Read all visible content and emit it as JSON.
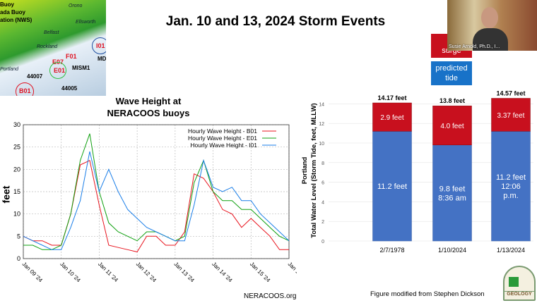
{
  "slide_title": "Jan. 10 and 13, 2024 Storm Events",
  "map": {
    "legend_fragments": [
      "Buoy",
      "ada Buoy",
      "ation (NWS)"
    ],
    "places": [
      "Orono",
      "Ellsworth",
      "Belfast",
      "Rockland",
      "Portland"
    ],
    "buoys": [
      "F01",
      "E07",
      "E01",
      "I01",
      "B01",
      "MISM1",
      "44007",
      "44005",
      "MD"
    ]
  },
  "wave_chart_title": [
    "Wave Height at",
    "NERACOOS buoys"
  ],
  "wave_source": "NERACOOS.org",
  "video": {
    "participant_name": "Susie Arnold, Ph.D., I..."
  },
  "bar_legend": {
    "surge": [
      "st",
      "surge"
    ],
    "tide": [
      "predicted",
      "tide"
    ]
  },
  "figure_credit": "Figure modified from Stephen Dickson",
  "logo_text": "GEOLOGY",
  "colors": {
    "surge": "#c8101e",
    "tide": "#4472c4",
    "legend_tide": "#1872c8",
    "b01": "#e8141e",
    "e01": "#10a010",
    "i01": "#1a7ee8"
  },
  "chart_data": [
    {
      "type": "line",
      "ylabel": "feet",
      "ylim": [
        0,
        30
      ],
      "yticks": [
        0,
        5,
        10,
        15,
        20,
        25,
        30
      ],
      "xticks": [
        "Jan 09 '24",
        "Jan 10 '24",
        "Jan 11 '24",
        "Jan 12 '24",
        "Jan 13 '24",
        "Jan 14 '24",
        "Jan 15 '24",
        "Jan 16"
      ],
      "grid": true,
      "legend_position": "top-right",
      "x_step": "6 hours from Jan 09 00:00 to Jan 16 00:00",
      "series": [
        {
          "name": "Hourly Wave Height  - B01",
          "color": "#e8141e",
          "values": [
            5,
            4,
            4,
            3,
            3,
            10,
            21,
            22,
            12,
            3,
            2.5,
            2,
            1.5,
            5,
            5,
            3,
            3,
            6,
            19,
            18,
            15,
            11,
            10,
            7,
            9,
            7,
            5,
            2,
            2
          ]
        },
        {
          "name": "Hourly Wave Height  - E01",
          "color": "#10a010",
          "values": [
            3,
            3,
            2,
            2,
            3,
            10,
            22,
            28,
            15,
            8,
            6,
            5,
            4,
            6,
            6,
            5,
            4,
            5,
            17,
            22,
            15,
            13,
            13,
            11,
            11,
            9,
            7,
            5,
            4
          ]
        },
        {
          "name": "Hourly Wave Height  - I01",
          "color": "#1a7ee8",
          "values": [
            5,
            4,
            3,
            2,
            2,
            7,
            13,
            24,
            15,
            20,
            15,
            11,
            9,
            7,
            6,
            5,
            4,
            4,
            12,
            22,
            16,
            15,
            16,
            13,
            13,
            10,
            8,
            6,
            4
          ]
        }
      ]
    },
    {
      "type": "bar",
      "stacked": true,
      "ylabel": [
        "Portland",
        "Total Water Level (Storm Tide, feet, MLLW)"
      ],
      "ylim": [
        0,
        14
      ],
      "yticks": [
        0,
        2,
        4,
        6,
        8,
        10,
        12,
        14
      ],
      "categories": [
        "2/7/1978",
        "1/10/2024",
        "1/13/2024"
      ],
      "series": [
        {
          "name": "predicted tide",
          "values": [
            11.2,
            9.8,
            11.2
          ],
          "labels": [
            [
              "11.2 feet"
            ],
            [
              "9.8 feet",
              "8:36 am"
            ],
            [
              "11.2 feet",
              "12:06",
              "p.m."
            ]
          ]
        },
        {
          "name": "storm surge",
          "values": [
            2.9,
            4.0,
            3.37
          ],
          "labels": [
            [
              "2.9 feet"
            ],
            [
              "4.0 feet"
            ],
            [
              "3.37 feet"
            ]
          ]
        }
      ],
      "totals": [
        "14.17 feet",
        "13.8 feet",
        "14.57 feet"
      ]
    }
  ]
}
